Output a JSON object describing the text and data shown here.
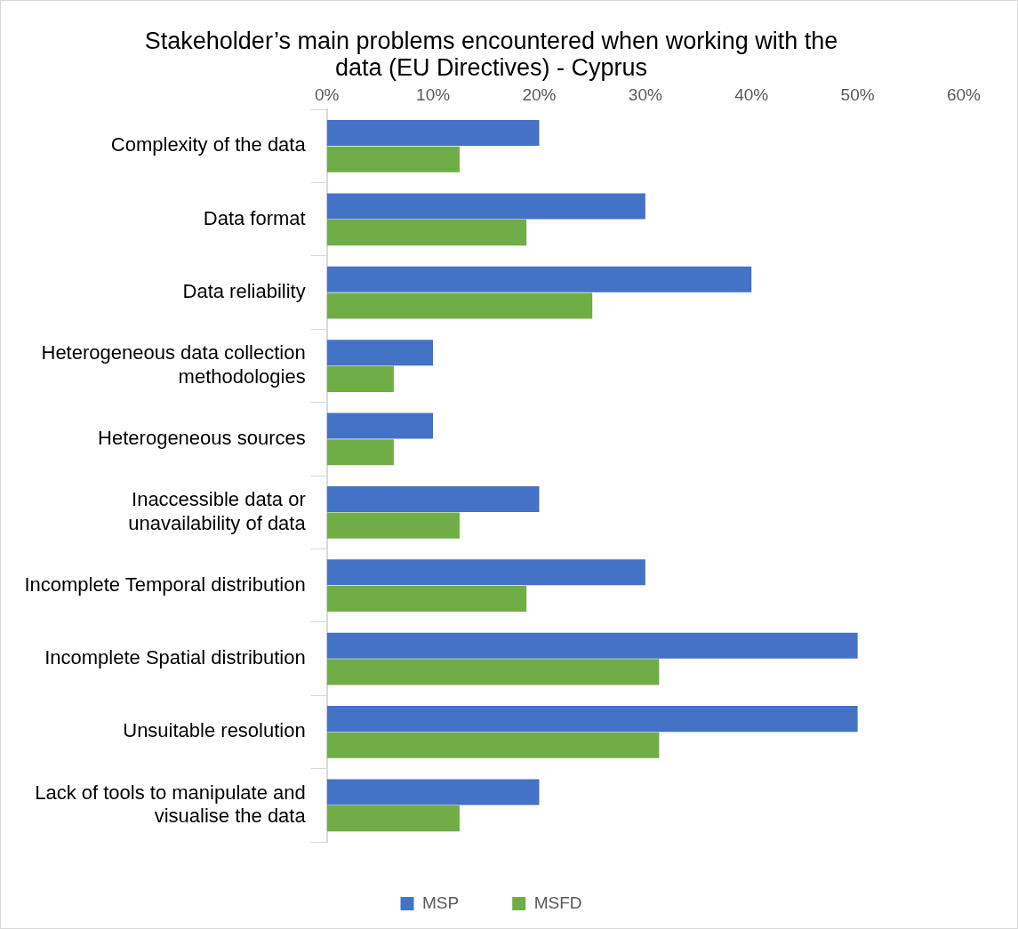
{
  "chart_data": {
    "type": "bar",
    "orientation": "horizontal",
    "title": "Stakeholder’s main problems encountered when working with the data (EU Directives) - Cyprus",
    "categories": [
      "Complexity of the data",
      "Data format",
      "Data reliability",
      "Heterogeneous data collection methodologies",
      "Heterogeneous sources",
      "Inaccessible data or unavailability of data",
      "Incomplete Temporal distribution",
      "Incomplete Spatial distribution",
      "Unsuitable resolution",
      "Lack of tools to manipulate and visualise the data"
    ],
    "series": [
      {
        "name": "MSP",
        "color": "#4472c4",
        "values": [
          20,
          30,
          40,
          10,
          10,
          20,
          30,
          50,
          50,
          20
        ]
      },
      {
        "name": "MSFD",
        "color": "#70ad47",
        "values": [
          12.5,
          18.8,
          25,
          6.3,
          6.3,
          12.5,
          18.8,
          31.3,
          31.3,
          12.5
        ]
      }
    ],
    "xlim": [
      0,
      60
    ],
    "xticks": [
      {
        "value": 0,
        "label": "0%"
      },
      {
        "value": 10,
        "label": "10%"
      },
      {
        "value": 20,
        "label": "20%"
      },
      {
        "value": 30,
        "label": "30%"
      },
      {
        "value": 40,
        "label": "40%"
      },
      {
        "value": 50,
        "label": "50%"
      },
      {
        "value": 60,
        "label": "60%"
      }
    ],
    "grid": false,
    "legend": "bottom"
  }
}
